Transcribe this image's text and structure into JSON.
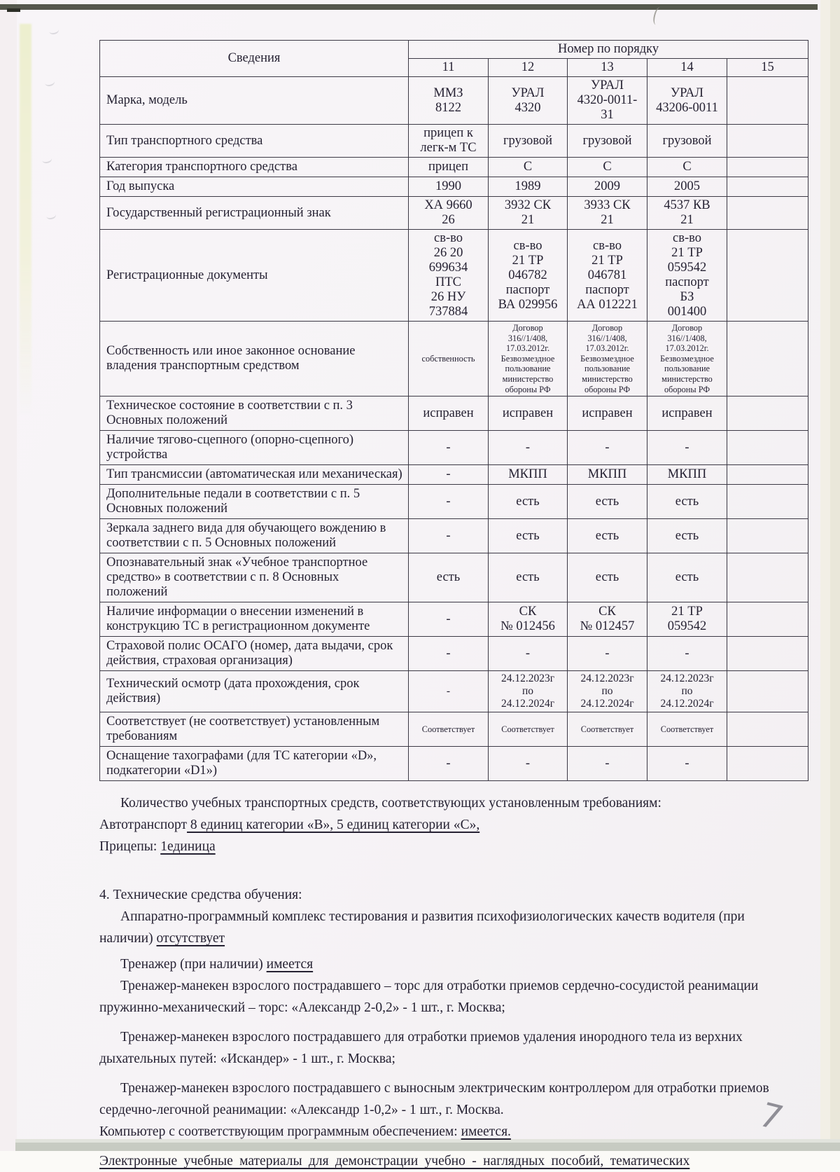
{
  "colors": {
    "ink": "#262233",
    "paper": "#f6f3f6",
    "pencil": "#8f8e96",
    "table_border": "#3c3945"
  },
  "table": {
    "header": {
      "info_label": "Сведения",
      "group_label": "Номер по порядку",
      "numbers": [
        "11",
        "12",
        "13",
        "14",
        "15"
      ]
    },
    "rows": [
      {
        "label": "Марка, модель",
        "values": [
          "ММЗ\n8122",
          "УРАЛ\n4320",
          "УРАЛ\n4320-0011-\n31",
          "УРАЛ\n43206-0011",
          ""
        ]
      },
      {
        "label": "Тип транспортного средства",
        "values": [
          "прицеп к\nлегк-м ТС",
          "грузовой",
          "грузовой",
          "грузовой",
          ""
        ]
      },
      {
        "label": "Категория транспортного средства",
        "values": [
          "прицеп",
          "С",
          "С",
          "С",
          ""
        ]
      },
      {
        "label": "Год выпуска",
        "values": [
          "1990",
          "1989",
          "2009",
          "2005",
          ""
        ]
      },
      {
        "label": "Государственный регистрационный  знак",
        "values": [
          "ХА 9660\n26",
          "3932 СК\n21",
          "3933 СК\n21",
          "4537 КВ\n21",
          ""
        ]
      },
      {
        "label": "Регистрационные  документы",
        "values": [
          "св-во\n26 20\n699634\nПТС\n26 НУ\n737884",
          "св-во\n21 ТР\n046782\nпаспорт\nВА 029956",
          "св-во\n21 ТР\n046781\nпаспорт\nАА 012221",
          "св-во\n21 ТР\n059542\nпаспорт\nБЗ\n001400",
          ""
        ]
      },
      {
        "label": "Собственность или иное законное основание владения  транспортным средством",
        "size": "small",
        "values": [
          "собственность",
          "Договор\n316//1/408,\n17.03.2012г.\nБезвозмездное\nпользование\nминистерство\nобороны РФ",
          "Договор\n316//1/408,\n17.03.2012г.\nБезвозмездное\nпользование\nминистерство\nобороны РФ",
          "Договор\n316//1/408,\n17.03.2012г.\nБезвозмездное\nпользование\nминистерство\nобороны РФ",
          ""
        ]
      },
      {
        "label": "Техническое состояние  в соответствии с п. 3 Основных положений",
        "values": [
          "исправен",
          "исправен",
          "исправен",
          "исправен",
          ""
        ]
      },
      {
        "label": "Наличие тягово-сцепного (опорно-сцепного) устройства",
        "values": [
          "-",
          "-",
          "-",
          "-",
          ""
        ]
      },
      {
        "label": "Тип трансмиссии (автоматическая или механическая)",
        "values": [
          "-",
          "МКПП",
          "МКПП",
          "МКПП",
          ""
        ]
      },
      {
        "label": "Дополнительные педали в соответствии с  п. 5 Основных положений",
        "values": [
          "-",
          "есть",
          "есть",
          "есть",
          ""
        ]
      },
      {
        "label": "Зеркала заднего вида для обучающего вождению в соответствии с  п. 5 Основных положений",
        "values": [
          "-",
          "есть",
          "есть",
          "есть",
          ""
        ]
      },
      {
        "label": "Опознавательный знак «Учебное транспортное средство» в соответствии с п. 8  Основных положений",
        "values": [
          "есть",
          "есть",
          "есть",
          "есть",
          ""
        ]
      },
      {
        "label": "Наличие информации о внесении изменений в конструкцию ТС в регистрационном документе",
        "values": [
          "-",
          "СК\n№ 012456",
          "СК\n№ 012457",
          "21 ТР\n059542",
          ""
        ]
      },
      {
        "label": "Страховой  полис  ОСАГО (номер, дата выдачи, срок действия, страховая организация)",
        "values": [
          "-",
          "-",
          "-",
          "-",
          ""
        ]
      },
      {
        "label": "Технический осмотр (дата прохождения, срок действия)",
        "size": "mid",
        "values": [
          "-",
          "24.12.2023г\nпо\n24.12.2024г",
          "24.12.2023г\nпо\n24.12.2024г",
          "24.12.2023г\nпо\n24.12.2024г",
          ""
        ]
      },
      {
        "label": "Соответствует (не соответствует) установленным требованиям",
        "size": "small",
        "values": [
          "Соответствует",
          "Соответствует",
          "Соответствует",
          "Соответствует",
          ""
        ]
      },
      {
        "label": "Оснащение тахографами (для ТС категории «D», подкатегории «D1»)",
        "values": [
          "-",
          "-",
          "-",
          "-",
          ""
        ]
      }
    ]
  },
  "summary": {
    "line1": "Количество учебных транспортных средств, соответствующих установленным требованиям:",
    "line2_label": "Автотранспорт",
    "line2_value": "  8  единиц категории «В»,  5 единиц категории «С»,",
    "line3_label": "Прицепы: ",
    "line3_value": "1единица"
  },
  "section4": {
    "heading": "4. Технические средства обучения:",
    "apk_text": "Аппаратно-программный комплекс тестирования и развития психофизиологических качеств водителя (при наличии) ",
    "apk_value": "отсутствует",
    "trainer_label": "Тренажер (при наличии) ",
    "trainer_value": "имеется",
    "manikin1": "Тренажер-манекен взрослого пострадавшего – торс для отработки приемов сердечно-сосудистой реанимации пружинно-механический – торс: «Александр 2-0,2» - 1 шт.,  г. Москва;",
    "manikin2": "Тренажер-манекен взрослого пострадавшего для отработки приемов удаления инородного тела из верхних дыхательных путей: «Искандер» - 1 шт.,  г. Москва;",
    "manikin3": "Тренажер-манекен взрослого пострадавшего с выносным электрическим контроллером для отработки приемов сердечно-легочной реанимации: «Александр 1-0,2» - 1 шт.,  г. Москва.",
    "computer_label": "Компьютер с соответствующим программным обеспечением: ",
    "computer_value": "имеется.",
    "ematerials": "Электронные учебные материалы для демонстрации учебно - наглядных пособий, тематических"
  },
  "handwritten": {
    "page_number": "7"
  }
}
